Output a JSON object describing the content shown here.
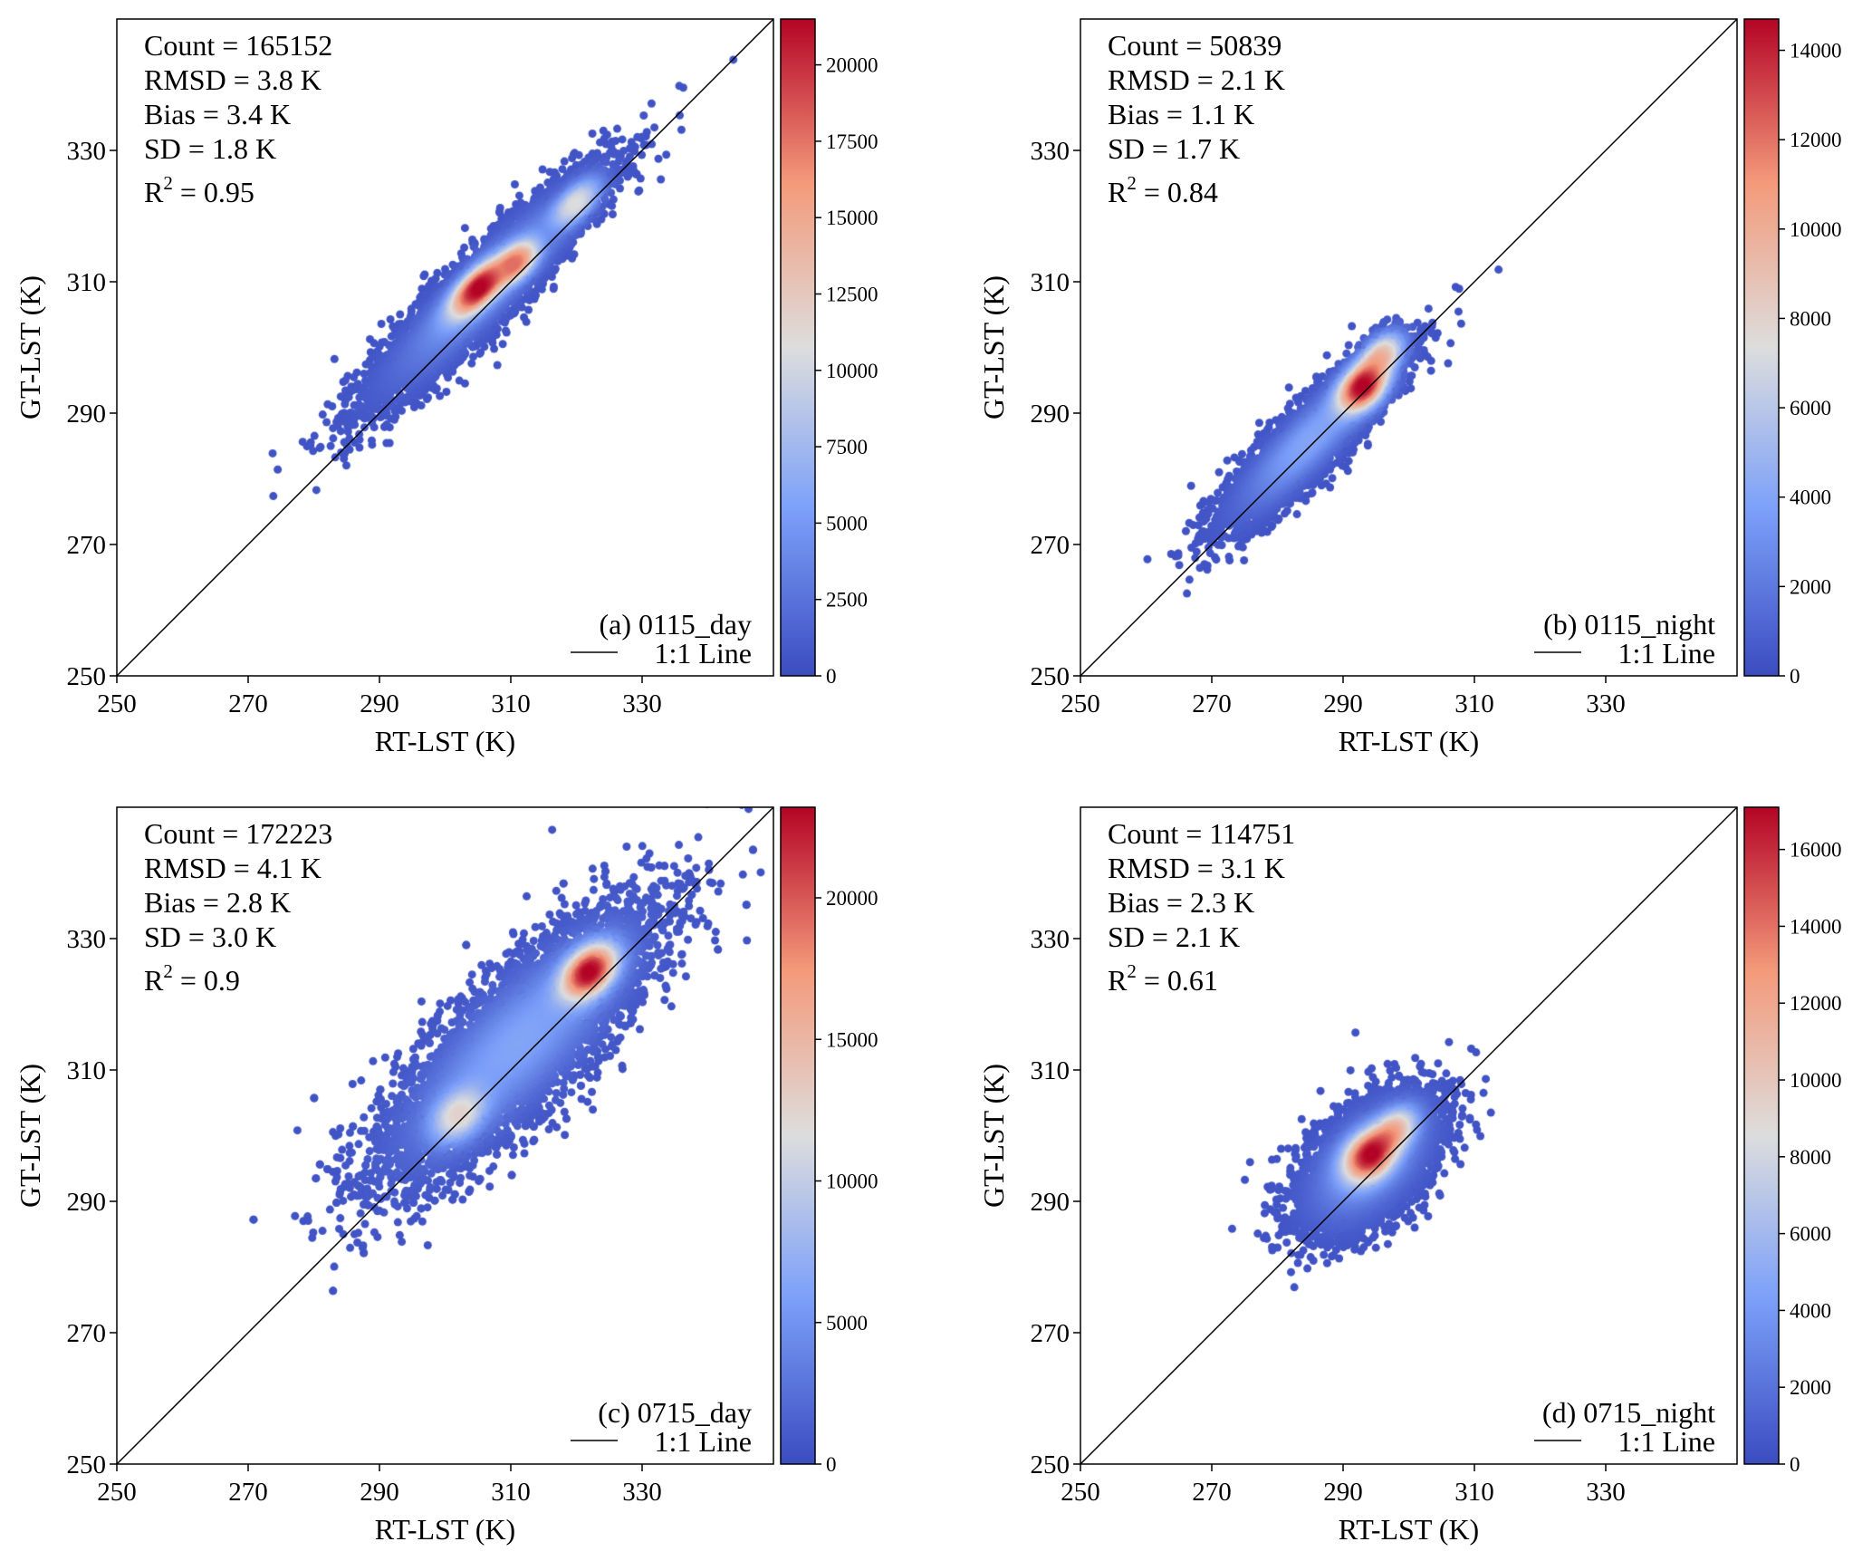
{
  "chart_data": [
    {
      "type": "scatter",
      "subtype": "density-scatter",
      "panel_label": "(a) 0115_day",
      "legend_line": "1:1 Line",
      "xlabel": "RT-LST (K)",
      "ylabel": "GT-LST (K)",
      "xlim": [
        250,
        350
      ],
      "ylim": [
        250,
        350
      ],
      "xticks": [
        "250",
        "270",
        "290",
        "310",
        "330"
      ],
      "yticks": [
        "250",
        "270",
        "290",
        "310",
        "330"
      ],
      "stats": {
        "count": "Count = 165152",
        "rmsd": "RMSD = 3.8 K",
        "bias": "Bias = 3.4 K",
        "sd": "SD = 1.8 K",
        "r2_symbol": "R",
        "r2_exp": "2",
        "r2_value": " = 0.95"
      },
      "colorbar": {
        "min": 0,
        "max": 21500,
        "ticks": [
          "0",
          "2500",
          "5000",
          "7500",
          "10000",
          "12500",
          "15000",
          "17500",
          "20000"
        ],
        "tick_values": [
          0,
          2500,
          5000,
          7500,
          10000,
          12500,
          15000,
          17500,
          20000
        ]
      },
      "clusters": [
        {
          "cx": 306,
          "cy": 309,
          "major_sd": 12,
          "minor_sd": 2.4,
          "n": 5000,
          "amp": 0.3
        },
        {
          "cx": 305,
          "cy": 309,
          "major_sd": 3.5,
          "minor_sd": 1.4,
          "n": 900,
          "amp": 1.0
        },
        {
          "cx": 311,
          "cy": 313,
          "major_sd": 2.5,
          "minor_sd": 1.3,
          "n": 400,
          "amp": 0.7
        },
        {
          "cx": 320,
          "cy": 322,
          "major_sd": 3.0,
          "minor_sd": 1.3,
          "n": 400,
          "amp": 0.55
        }
      ]
    },
    {
      "type": "scatter",
      "subtype": "density-scatter",
      "panel_label": "(b) 0115_night",
      "legend_line": "1:1 Line",
      "xlabel": "RT-LST (K)",
      "ylabel": "GT-LST (K)",
      "xlim": [
        250,
        350
      ],
      "ylim": [
        250,
        350
      ],
      "xticks": [
        "250",
        "270",
        "290",
        "310",
        "330"
      ],
      "yticks": [
        "250",
        "270",
        "290",
        "310",
        "330"
      ],
      "stats": {
        "count": "Count = 50839",
        "rmsd": "RMSD = 2.1 K",
        "bias": "Bias = 1.1 K",
        "sd": "SD = 1.7 K",
        "r2_symbol": "R",
        "r2_exp": "2",
        "r2_value": " = 0.84"
      },
      "colorbar": {
        "min": 0,
        "max": 14700,
        "ticks": [
          "0",
          "2000",
          "4000",
          "6000",
          "8000",
          "10000",
          "12000",
          "14000"
        ],
        "tick_values": [
          0,
          2000,
          4000,
          6000,
          8000,
          10000,
          12000,
          14000
        ]
      },
      "clusters": [
        {
          "cx": 285,
          "cy": 286,
          "major_sd": 9,
          "minor_sd": 2.2,
          "n": 4000,
          "amp": 0.3
        },
        {
          "cx": 293,
          "cy": 294,
          "major_sd": 2.8,
          "minor_sd": 1.8,
          "n": 900,
          "amp": 1.0
        },
        {
          "cx": 296,
          "cy": 299,
          "major_sd": 2.5,
          "minor_sd": 1.5,
          "n": 400,
          "amp": 0.6
        }
      ]
    },
    {
      "type": "scatter",
      "subtype": "density-scatter",
      "panel_label": "(c) 0715_day",
      "legend_line": "1:1 Line",
      "xlabel": "RT-LST (K)",
      "ylabel": "GT-LST (K)",
      "xlim": [
        250,
        350
      ],
      "ylim": [
        250,
        350
      ],
      "xticks": [
        "250",
        "270",
        "290",
        "310",
        "330"
      ],
      "yticks": [
        "250",
        "270",
        "290",
        "310",
        "330"
      ],
      "stats": {
        "count": "Count = 172223",
        "rmsd": "RMSD = 4.1 K",
        "bias": "Bias = 2.8 K",
        "sd": "SD = 3.0 K",
        "r2_symbol": "R",
        "r2_exp": "2",
        "r2_value": " = 0.9"
      },
      "colorbar": {
        "min": 0,
        "max": 23200,
        "ticks": [
          "0",
          "5000",
          "10000",
          "15000",
          "20000"
        ],
        "tick_values": [
          0,
          5000,
          10000,
          15000,
          20000
        ]
      },
      "clusters": [
        {
          "cx": 311,
          "cy": 314,
          "major_sd": 14,
          "minor_sd": 4.5,
          "n": 6000,
          "amp": 0.3
        },
        {
          "cx": 322,
          "cy": 325,
          "major_sd": 3.2,
          "minor_sd": 2.0,
          "n": 900,
          "amp": 1.0
        },
        {
          "cx": 302,
          "cy": 303,
          "major_sd": 3.0,
          "minor_sd": 2.0,
          "n": 400,
          "amp": 0.45
        }
      ]
    },
    {
      "type": "scatter",
      "subtype": "density-scatter",
      "panel_label": "(d) 0715_night",
      "legend_line": "1:1 Line",
      "xlabel": "RT-LST (K)",
      "ylabel": "GT-LST (K)",
      "xlim": [
        250,
        350
      ],
      "ylim": [
        250,
        350
      ],
      "xticks": [
        "250",
        "270",
        "290",
        "310",
        "330"
      ],
      "yticks": [
        "250",
        "270",
        "290",
        "310",
        "330"
      ],
      "stats": {
        "count": "Count = 114751",
        "rmsd": "RMSD = 3.1 K",
        "bias": "Bias = 2.3 K",
        "sd": "SD = 2.1 K",
        "r2_symbol": "R",
        "r2_exp": "2",
        "r2_value": " = 0.61"
      },
      "colorbar": {
        "min": 0,
        "max": 17100,
        "ticks": [
          "0",
          "2000",
          "4000",
          "6000",
          "8000",
          "10000",
          "12000",
          "14000",
          "16000"
        ],
        "tick_values": [
          0,
          2000,
          4000,
          6000,
          8000,
          10000,
          12000,
          14000,
          16000
        ]
      },
      "clusters": [
        {
          "cx": 294,
          "cy": 296,
          "major_sd": 6.5,
          "minor_sd": 3.6,
          "n": 4500,
          "amp": 0.35
        },
        {
          "cx": 294,
          "cy": 297,
          "major_sd": 2.8,
          "minor_sd": 2.0,
          "n": 900,
          "amp": 1.0
        },
        {
          "cx": 298,
          "cy": 301,
          "major_sd": 2.5,
          "minor_sd": 1.6,
          "n": 400,
          "amp": 0.6
        }
      ]
    }
  ]
}
